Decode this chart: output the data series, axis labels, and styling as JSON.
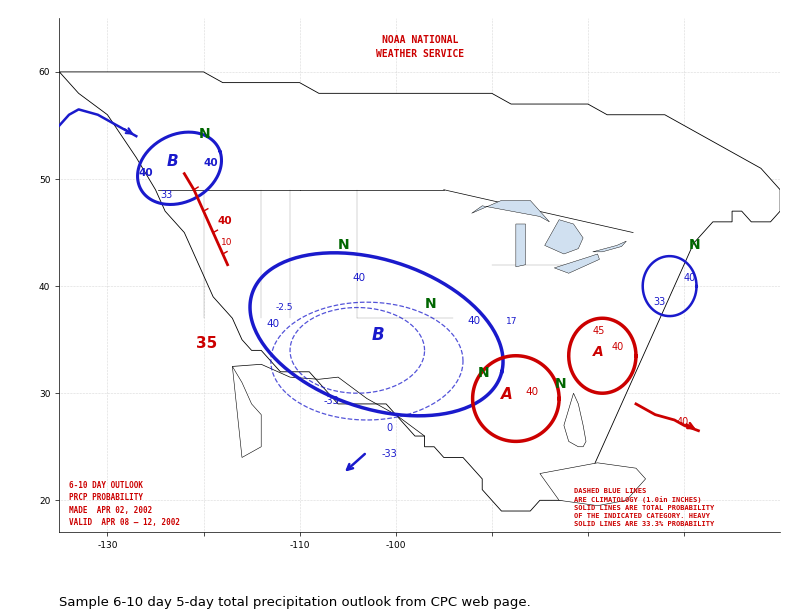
{
  "title_line1": "NOAA NATIONAL",
  "title_line2": "WEATHER SERVICE",
  "title_color": "#cc0000",
  "map_bg": "#ffffff",
  "caption": "Sample 6-10 day 5-day total precipitation outlook from CPC web page.",
  "caption_color": "#000000",
  "legend_left_lines": [
    "6-10 DAY OUTLOOK",
    "PRCP PROBABILITY",
    "MADE  APR 02, 2002",
    "VALID  APR 08 – 12, 2002"
  ],
  "legend_right_lines": [
    "DASHED BLUE LINES",
    "ARE CLIMATOLOGY (1.0in INCHES)",
    "SOLID LINES ARE TOTAL PROBABILITY",
    "OF THE INDICATED CATEGORY. HEAVY",
    "SOLID LINES ARE 33.3% PROBABILITY"
  ],
  "legend_color": "#cc0000",
  "blue_color": "#1a1acc",
  "red_color": "#cc0000",
  "green_color": "#006600",
  "fig_width": 7.92,
  "fig_height": 6.12,
  "map_xlim": [
    -135,
    -60
  ],
  "map_ylim": [
    17,
    65
  ]
}
